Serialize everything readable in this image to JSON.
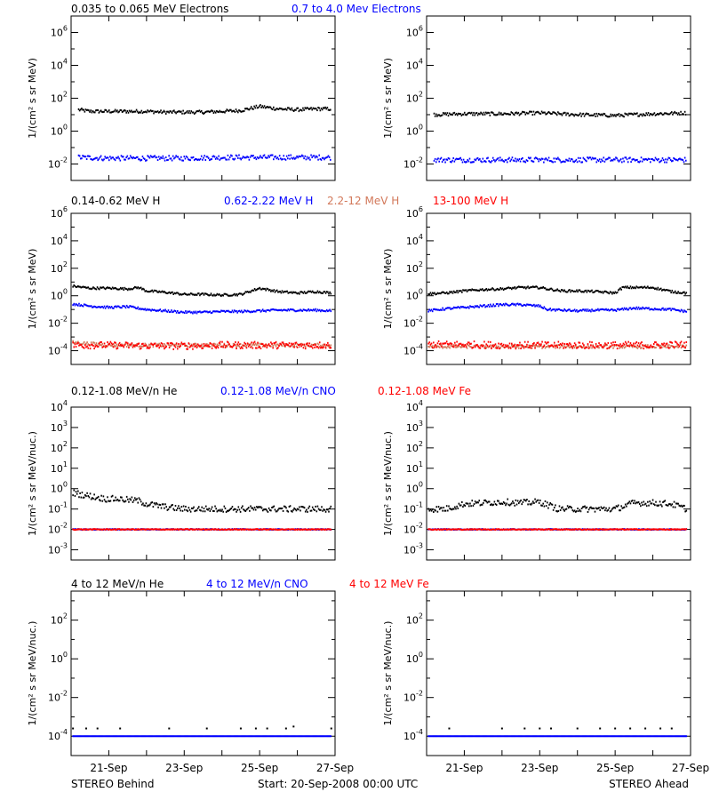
{
  "footer": {
    "left": "STEREO Behind",
    "center": "Start: 20-Sep-2008 00:00 UTC",
    "right": "STEREO Ahead"
  },
  "x_ticks": [
    "21-Sep",
    "23-Sep",
    "25-Sep",
    "27-Sep"
  ],
  "colors": {
    "black": "#000000",
    "blue": "#0000ff",
    "red": "#ff0000",
    "salmon": "#d2785a",
    "frame": "#000000"
  },
  "chart_data": [
    {
      "type": "scatter",
      "row": 0,
      "spacecraft": "STEREO Behind",
      "ylabel": "1/(cm² s sr MeV)",
      "ylim_log10": [
        -3,
        7
      ],
      "ytick_exponents": [
        -2,
        0,
        2,
        4,
        6
      ],
      "xlim_days": [
        0,
        7
      ],
      "title_labels": [
        {
          "text": "0.035 to 0.065 MeV Electrons",
          "color": "black"
        },
        {
          "text": "0.7 to 4.0 Mev Electrons",
          "color": "blue"
        }
      ],
      "series": [
        {
          "color": "black",
          "x": [
            0.2,
            0.5,
            1.0,
            1.5,
            2.0,
            2.5,
            3.0,
            3.5,
            4.0,
            4.5,
            5.0,
            5.5,
            6.0,
            6.5,
            6.9
          ],
          "log10y": [
            1.3,
            1.2,
            1.2,
            1.2,
            1.2,
            1.15,
            1.15,
            1.15,
            1.2,
            1.25,
            1.5,
            1.35,
            1.3,
            1.35,
            1.35
          ],
          "jitter": 0.1
        },
        {
          "color": "blue",
          "x": [
            0.2,
            1.0,
            2.0,
            3.0,
            4.0,
            5.0,
            6.0,
            6.9
          ],
          "log10y": [
            -1.6,
            -1.65,
            -1.65,
            -1.65,
            -1.6,
            -1.6,
            -1.6,
            -1.6
          ],
          "jitter": 0.15
        }
      ]
    },
    {
      "type": "scatter",
      "row": 0,
      "spacecraft": "STEREO Ahead",
      "ylabel": "1/(cm² s sr MeV)",
      "ylim_log10": [
        -3,
        7
      ],
      "ytick_exponents": [
        -2,
        0,
        2,
        4,
        6
      ],
      "xlim_days": [
        0,
        7
      ],
      "title_labels": [],
      "series": [
        {
          "color": "black",
          "x": [
            0.2,
            1.0,
            2.0,
            3.0,
            4.0,
            5.0,
            6.0,
            6.9
          ],
          "log10y": [
            1.0,
            1.05,
            1.05,
            1.1,
            1.0,
            0.95,
            1.05,
            1.1
          ],
          "jitter": 0.1
        },
        {
          "color": "blue",
          "x": [
            0.2,
            1.0,
            2.0,
            3.0,
            4.0,
            5.0,
            6.0,
            6.9
          ],
          "log10y": [
            -1.75,
            -1.75,
            -1.75,
            -1.75,
            -1.75,
            -1.75,
            -1.75,
            -1.75
          ],
          "jitter": 0.15
        }
      ]
    },
    {
      "type": "scatter",
      "row": 1,
      "spacecraft": "STEREO Behind",
      "ylabel": "1/(cm² s sr MeV)",
      "ylim_log10": [
        -5,
        6
      ],
      "ytick_exponents": [
        -4,
        -2,
        0,
        2,
        4,
        6
      ],
      "xlim_days": [
        0,
        7
      ],
      "title_labels": [
        {
          "text": "0.14-0.62 MeV H",
          "color": "black"
        },
        {
          "text": "0.62-2.22 MeV H",
          "color": "blue"
        },
        {
          "text": "2.2-12 MeV H",
          "color": "salmon"
        },
        {
          "text": "13-100 MeV H",
          "color": "red"
        }
      ],
      "series": [
        {
          "color": "black",
          "x": [
            0.05,
            0.5,
            1.0,
            1.5,
            1.8,
            2.0,
            2.5,
            3.0,
            3.5,
            4.0,
            4.5,
            5.0,
            5.5,
            6.0,
            6.5,
            6.9
          ],
          "log10y": [
            0.7,
            0.55,
            0.55,
            0.5,
            0.6,
            0.35,
            0.25,
            0.1,
            0.1,
            0.05,
            0.1,
            0.55,
            0.3,
            0.2,
            0.3,
            0.2
          ],
          "jitter": 0.08
        },
        {
          "color": "blue",
          "x": [
            0.05,
            0.5,
            1.0,
            1.5,
            2.0,
            2.5,
            3.0,
            3.5,
            4.0,
            4.5,
            5.0,
            5.5,
            6.0,
            6.5,
            6.9
          ],
          "log10y": [
            -0.6,
            -0.75,
            -0.85,
            -0.8,
            -1.0,
            -1.1,
            -1.2,
            -1.2,
            -1.15,
            -1.15,
            -1.1,
            -1.05,
            -1.05,
            -1.05,
            -1.1
          ],
          "jitter": 0.08
        },
        {
          "color": "salmon",
          "x": [
            0.05,
            1.0,
            2.0,
            3.0,
            4.0,
            5.0,
            6.0,
            6.9
          ],
          "log10y": [
            -3.4,
            -3.6,
            -3.6,
            -3.6,
            -3.6,
            -3.6,
            -3.6,
            -3.6
          ],
          "jitter": 0.12
        },
        {
          "color": "red",
          "x": [
            0.05,
            1.0,
            2.0,
            3.0,
            4.0,
            5.0,
            6.0,
            6.9
          ],
          "log10y": [
            -3.6,
            -3.6,
            -3.65,
            -3.65,
            -3.6,
            -3.6,
            -3.6,
            -3.6
          ],
          "jitter": 0.25
        }
      ]
    },
    {
      "type": "scatter",
      "row": 1,
      "spacecraft": "STEREO Ahead",
      "ylabel": "1/(cm² s sr MeV)",
      "ylim_log10": [
        -5,
        6
      ],
      "ytick_exponents": [
        -4,
        -2,
        0,
        2,
        4,
        6
      ],
      "xlim_days": [
        0,
        7
      ],
      "title_labels": [],
      "series": [
        {
          "color": "black",
          "x": [
            0.05,
            0.5,
            1.0,
            1.5,
            2.0,
            2.5,
            3.0,
            3.2,
            3.6,
            4.0,
            4.5,
            5.0,
            5.2,
            5.6,
            6.0,
            6.5,
            6.9
          ],
          "log10y": [
            0.15,
            0.2,
            0.35,
            0.45,
            0.5,
            0.6,
            0.6,
            0.5,
            0.35,
            0.35,
            0.3,
            0.2,
            0.6,
            0.6,
            0.6,
            0.3,
            0.2
          ],
          "jitter": 0.08
        },
        {
          "color": "blue",
          "x": [
            0.05,
            0.5,
            1.0,
            1.5,
            2.0,
            2.5,
            3.0,
            3.2,
            3.6,
            4.0,
            4.5,
            5.0,
            5.5,
            6.0,
            6.5,
            6.9
          ],
          "log10y": [
            -1.1,
            -0.95,
            -0.85,
            -0.75,
            -0.65,
            -0.65,
            -0.75,
            -1.0,
            -1.05,
            -1.1,
            -1.05,
            -1.05,
            -0.9,
            -0.95,
            -1.0,
            -1.15
          ],
          "jitter": 0.08
        },
        {
          "color": "salmon",
          "x": [
            0.05,
            1.0,
            2.0,
            3.0,
            4.0,
            5.0,
            6.0,
            6.9
          ],
          "log10y": [
            -3.7,
            -3.7,
            -3.7,
            -3.7,
            -3.7,
            -3.7,
            -3.7,
            -3.7
          ],
          "jitter": 0.12
        },
        {
          "color": "red",
          "x": [
            0.05,
            1.0,
            2.0,
            3.0,
            4.0,
            5.0,
            6.0,
            6.9
          ],
          "log10y": [
            -3.55,
            -3.55,
            -3.6,
            -3.6,
            -3.6,
            -3.6,
            -3.6,
            -3.55
          ],
          "jitter": 0.25
        }
      ]
    },
    {
      "type": "scatter",
      "row": 2,
      "spacecraft": "STEREO Behind",
      "ylabel": "1/(cm² s sr MeV/nuc.)",
      "ylim_log10": [
        -3.5,
        4
      ],
      "ytick_exponents": [
        -3,
        -2,
        -1,
        0,
        1,
        2,
        3,
        4
      ],
      "xlim_days": [
        0,
        7
      ],
      "title_labels": [
        {
          "text": "0.12-1.08 MeV/n He",
          "color": "black"
        },
        {
          "text": "0.12-1.08 MeV/n CNO",
          "color": "blue"
        },
        {
          "text": "0.12-1.08 MeV Fe",
          "color": "red"
        }
      ],
      "series": [
        {
          "color": "black",
          "x": [
            0.05,
            0.3,
            0.6,
            0.9,
            1.2,
            1.5,
            1.8,
            2.0,
            2.5,
            3.0,
            3.5,
            4.0,
            4.5,
            5.0,
            5.5,
            6.0,
            6.5,
            6.9
          ],
          "log10y": [
            -0.2,
            -0.3,
            -0.4,
            -0.5,
            -0.5,
            -0.55,
            -0.6,
            -0.75,
            -0.9,
            -1.0,
            -1.0,
            -1.0,
            -1.0,
            -1.0,
            -1.0,
            -1.0,
            -1.0,
            -1.0
          ],
          "jitter": 0.15
        },
        {
          "color": "blue",
          "x": [
            0.05,
            1.0,
            2.0,
            3.0,
            4.0,
            5.0,
            6.0,
            6.9
          ],
          "log10y": [
            -2.0,
            -2.0,
            -2.0,
            -2.0,
            -2.0,
            -2.0,
            -2.0,
            -2.0
          ],
          "jitter": 0.02
        },
        {
          "color": "red",
          "x": [
            0.05,
            1.0,
            2.0,
            3.0,
            4.0,
            5.0,
            6.0,
            6.9
          ],
          "log10y": [
            -2.0,
            -2.0,
            -2.0,
            -2.0,
            -2.0,
            -2.0,
            -2.0,
            -2.0
          ],
          "jitter": 0.02
        }
      ]
    },
    {
      "type": "scatter",
      "row": 2,
      "spacecraft": "STEREO Ahead",
      "ylabel": "1/(cm² s sr MeV/nuc.)",
      "ylim_log10": [
        -3.5,
        4
      ],
      "ytick_exponents": [
        -3,
        -2,
        -1,
        0,
        1,
        2,
        3,
        4
      ],
      "xlim_days": [
        0,
        7
      ],
      "title_labels": [],
      "series": [
        {
          "color": "black",
          "x": [
            0.05,
            0.5,
            1.0,
            1.5,
            2.0,
            2.5,
            3.0,
            3.5,
            4.0,
            4.5,
            5.0,
            5.5,
            6.0,
            6.5,
            6.9
          ],
          "log10y": [
            -1.0,
            -1.0,
            -0.75,
            -0.7,
            -0.65,
            -0.7,
            -0.65,
            -1.0,
            -1.0,
            -1.0,
            -1.0,
            -0.7,
            -0.7,
            -0.75,
            -1.0
          ],
          "jitter": 0.15
        },
        {
          "color": "blue",
          "x": [
            0.05,
            1.0,
            2.0,
            3.0,
            4.0,
            5.0,
            6.0,
            6.9
          ],
          "log10y": [
            -2.0,
            -2.0,
            -2.0,
            -2.0,
            -2.0,
            -2.0,
            -2.0,
            -2.0
          ],
          "jitter": 0.02
        },
        {
          "color": "red",
          "x": [
            0.05,
            1.0,
            2.0,
            3.0,
            4.0,
            5.0,
            6.0,
            6.9
          ],
          "log10y": [
            -2.0,
            -2.0,
            -2.0,
            -2.0,
            -2.0,
            -2.0,
            -2.0,
            -2.0
          ],
          "jitter": 0.02
        }
      ]
    },
    {
      "type": "scatter",
      "row": 3,
      "spacecraft": "STEREO Behind",
      "ylabel": "1/(cm² s sr MeV/nuc.)",
      "ylim_log10": [
        -5,
        3.5
      ],
      "ytick_exponents": [
        -4,
        -2,
        0,
        2
      ],
      "xlim_days": [
        0,
        7
      ],
      "title_labels": [
        {
          "text": "4 to 12 MeV/n He",
          "color": "black"
        },
        {
          "text": "4 to 12 MeV/n CNO",
          "color": "blue"
        },
        {
          "text": "4 to 12 MeV Fe",
          "color": "red"
        }
      ],
      "series": [
        {
          "color": "black",
          "x": [
            0.05,
            0.4,
            0.7,
            1.3,
            2.6,
            3.6,
            4.5,
            4.9,
            5.2,
            5.7,
            5.9,
            6.9
          ],
          "log10y": [
            -3.6,
            -3.6,
            -3.6,
            -3.6,
            -3.6,
            -3.6,
            -3.6,
            -3.6,
            -3.6,
            -3.6,
            -3.5,
            -3.6
          ],
          "jitter": 0.0
        },
        {
          "color": "blue",
          "x": [
            0.05,
            1.0,
            2.0,
            3.0,
            4.0,
            5.0,
            6.0,
            6.9
          ],
          "log10y": [
            -4.0,
            -4.0,
            -4.0,
            -4.0,
            -4.0,
            -4.0,
            -4.0,
            -4.0
          ],
          "jitter": 0.0
        }
      ]
    },
    {
      "type": "scatter",
      "row": 3,
      "spacecraft": "STEREO Ahead",
      "ylabel": "1/(cm² s sr MeV/nuc.)",
      "ylim_log10": [
        -5,
        3.5
      ],
      "ytick_exponents": [
        -4,
        -2,
        0,
        2
      ],
      "xlim_days": [
        0,
        7
      ],
      "title_labels": [],
      "series": [
        {
          "color": "black",
          "x": [
            0.6,
            2.0,
            2.6,
            3.0,
            3.3,
            4.0,
            4.6,
            5.0,
            5.4,
            5.8,
            6.2,
            6.5
          ],
          "log10y": [
            -3.6,
            -3.6,
            -3.6,
            -3.6,
            -3.6,
            -3.6,
            -3.6,
            -3.6,
            -3.6,
            -3.6,
            -3.6,
            -3.6
          ],
          "jitter": 0.0
        },
        {
          "color": "blue",
          "x": [
            0.05,
            1.0,
            2.0,
            3.0,
            4.0,
            5.0,
            6.0,
            6.9
          ],
          "log10y": [
            -4.0,
            -4.0,
            -4.0,
            -4.0,
            -4.0,
            -4.0,
            -4.0,
            -4.0
          ],
          "jitter": 0.0
        }
      ]
    }
  ]
}
